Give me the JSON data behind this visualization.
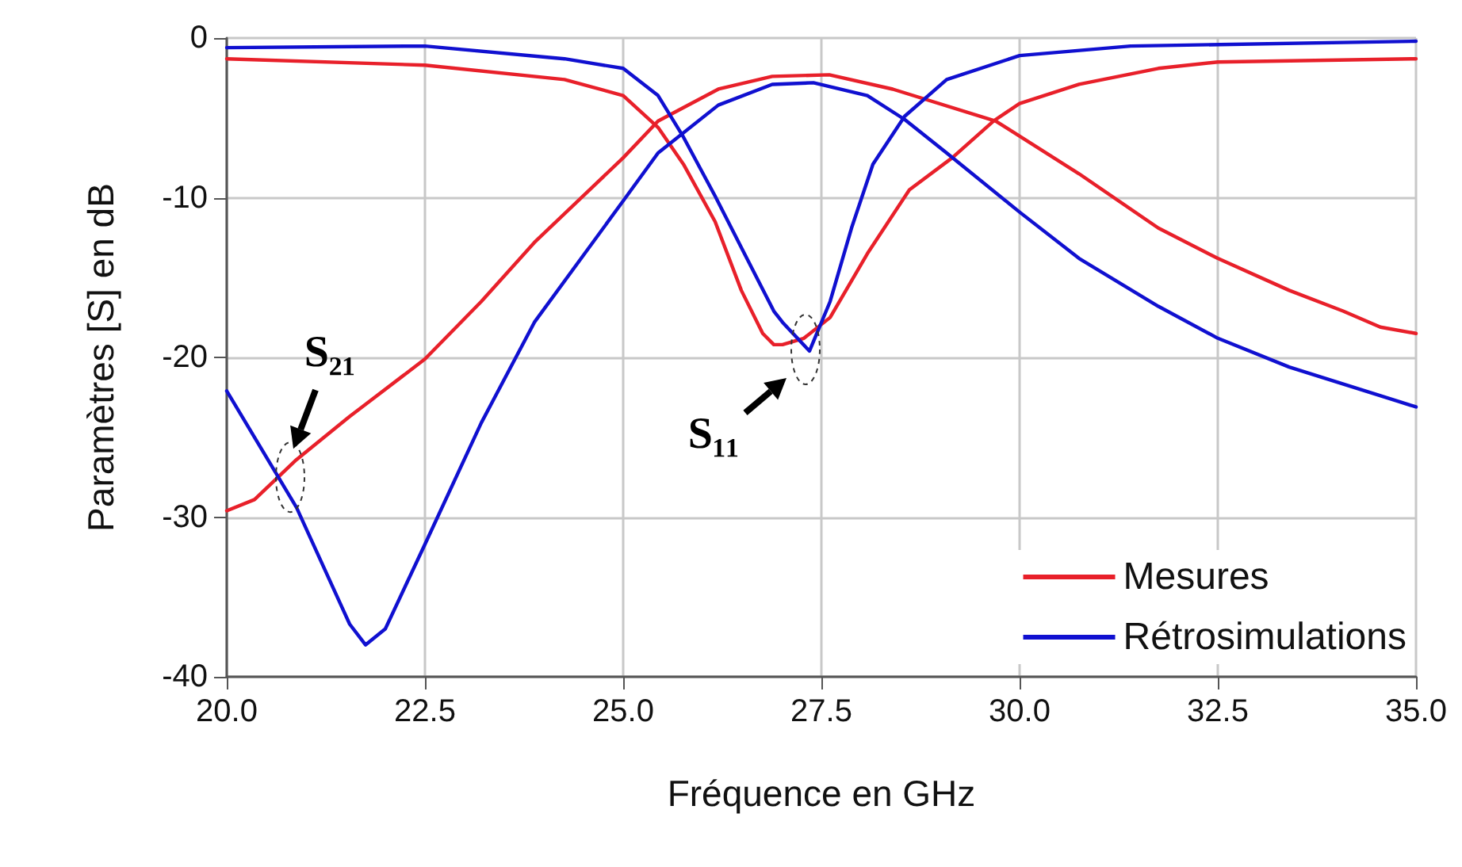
{
  "chart_data": {
    "type": "line",
    "xlabel": "Fréquence en GHz",
    "ylabel": "Paramètres [S] en dB",
    "xlim": [
      20,
      35
    ],
    "xticks": [
      {
        "value": 20,
        "label": "20.0"
      },
      {
        "value": 22.5,
        "label": "22.5"
      },
      {
        "value": 25,
        "label": "25.0"
      },
      {
        "value": 27.5,
        "label": "27.5"
      },
      {
        "value": 30,
        "label": "30.0"
      },
      {
        "value": 32.5,
        "label": "32.5"
      },
      {
        "value": 35,
        "label": "35.0"
      }
    ],
    "ylim": [
      -40,
      0
    ],
    "yticks": [
      -40,
      -30,
      -20,
      -10,
      0
    ],
    "grid": true,
    "legend": "bottom right",
    "line_style": "solid",
    "marker": "none",
    "annotations": [
      {
        "text": "S₂₁",
        "x": 20.8,
        "y": -27.5
      },
      {
        "text": "S₁₁",
        "x": 27.3,
        "y": -19.5
      }
    ],
    "series": [
      {
        "name": "Mesures",
        "color": "#e8202a",
        "x": [
          20,
          22.5,
          24.26,
          25,
          25.44,
          25.76,
          26.16,
          26.49,
          26.76,
          26.9,
          27.01,
          27.28,
          27.61,
          28.08,
          28.61,
          29.15,
          29.67,
          30,
          30.75,
          31.75,
          32.5,
          35
        ],
        "values": [
          -1.3,
          -1.7,
          -2.6,
          -3.6,
          -5.6,
          -7.9,
          -11.5,
          -15.8,
          -18.5,
          -19.2,
          -19.2,
          -18.8,
          -17.5,
          -13.5,
          -9.5,
          -7.5,
          -5.2,
          -4.1,
          -2.9,
          -1.9,
          -1.5,
          -1.3
        ]
      },
      {
        "color": "#e8202a",
        "x": [
          20,
          20.35,
          20.88,
          21.55,
          22.5,
          23.21,
          23.88,
          25,
          25.44,
          26.2,
          26.88,
          27.6,
          28.4,
          29.7,
          30.75,
          31.75,
          32.5,
          33.4,
          34.08,
          34.55,
          35
        ],
        "values": [
          -29.6,
          -28.9,
          -26.4,
          -23.7,
          -20.1,
          -16.5,
          -12.8,
          -7.5,
          -5.2,
          -3.2,
          -2.4,
          -2.3,
          -3.2,
          -5.2,
          -8.5,
          -11.9,
          -13.8,
          -15.8,
          -17.1,
          -18.1,
          -18.5
        ]
      },
      {
        "name": "Rétrosimulations",
        "color": "#1010d0",
        "x": [
          20,
          22.5,
          24.26,
          25,
          25.44,
          25.76,
          26.16,
          26.56,
          26.9,
          27.01,
          27.35,
          27.61,
          27.88,
          28.15,
          28.55,
          29.08,
          30,
          31.4,
          35
        ],
        "values": [
          -0.6,
          -0.5,
          -1.3,
          -1.9,
          -3.6,
          -6.2,
          -9.9,
          -13.8,
          -17.1,
          -17.8,
          -19.6,
          -16.5,
          -11.9,
          -7.9,
          -4.9,
          -2.6,
          -1.1,
          -0.5,
          -0.2
        ]
      },
      {
        "color": "#1010d0",
        "x": [
          20,
          20.88,
          21.55,
          21.75,
          22,
          22.5,
          23.21,
          23.88,
          25,
          25.44,
          26.2,
          26.88,
          27.4,
          28.08,
          28.55,
          29.08,
          30,
          30.75,
          31.75,
          32.5,
          33.4,
          35
        ],
        "values": [
          -22.1,
          -29.4,
          -36.7,
          -38,
          -37,
          -31.7,
          -24.1,
          -17.8,
          -10.2,
          -7.2,
          -4.2,
          -2.9,
          -2.8,
          -3.6,
          -5.1,
          -7.2,
          -10.9,
          -13.8,
          -16.8,
          -18.8,
          -20.6,
          -23.1
        ]
      }
    ]
  }
}
